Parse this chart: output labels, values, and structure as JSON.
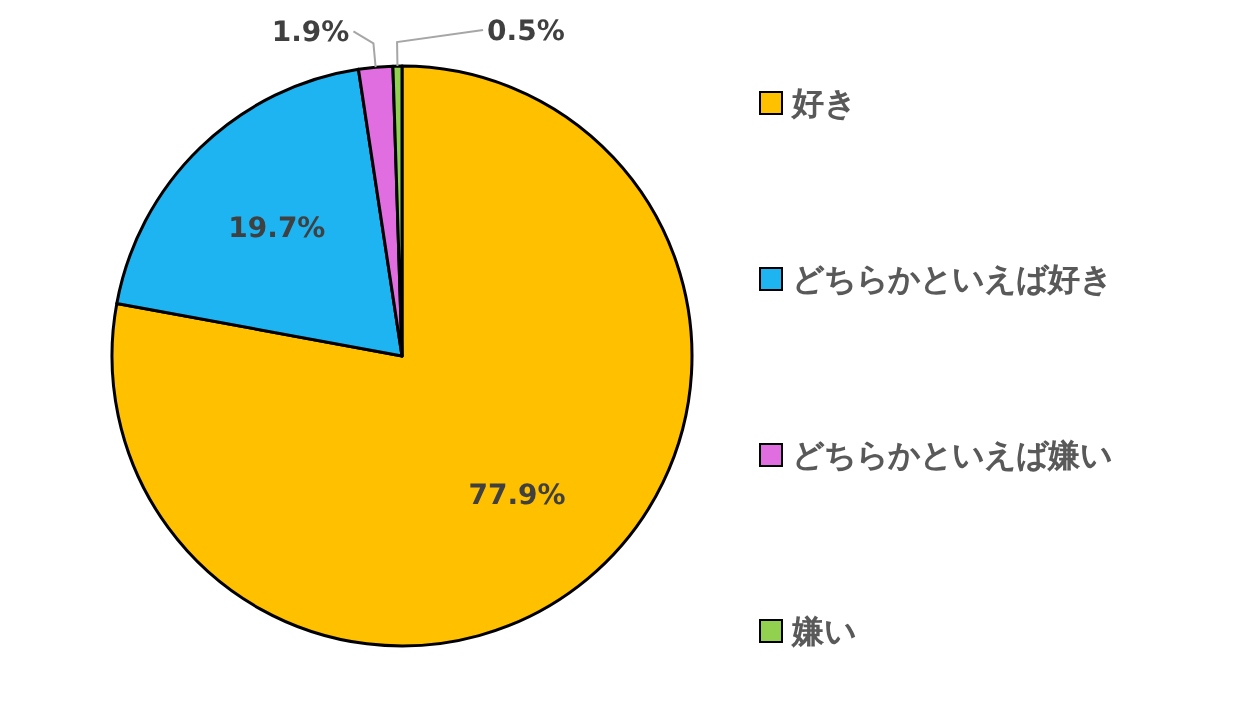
{
  "chart_data": {
    "type": "pie",
    "categories": [
      "好き",
      "どちらかといえば好き",
      "どちらかといえば嫌い",
      "嫌い"
    ],
    "values": [
      77.9,
      19.7,
      1.9,
      0.5
    ],
    "colors": [
      "#ffc000",
      "#1eb4f2",
      "#e06ee0",
      "#92d050"
    ],
    "value_labels": [
      "77.9%",
      "19.7%",
      "1.9%",
      "0.5%"
    ],
    "legend": "right"
  }
}
